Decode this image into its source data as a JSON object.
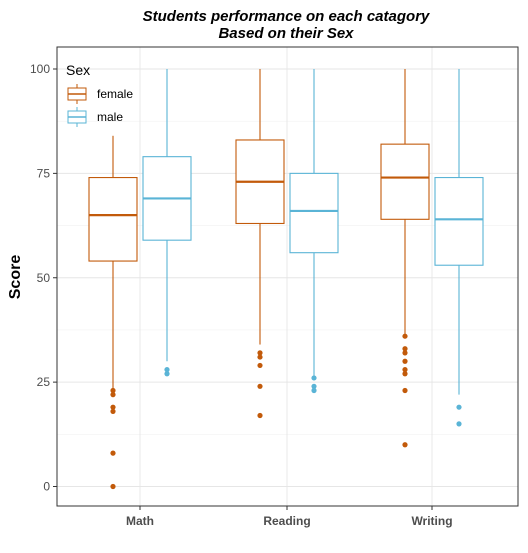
{
  "chart_data": {
    "type": "boxplot",
    "title": "Students performance on each catagory",
    "subtitle": "Based on their Sex",
    "xlabel": "",
    "ylabel": "Score",
    "ylim": [
      0,
      100
    ],
    "yticks": [
      0,
      25,
      50,
      75,
      100
    ],
    "categories": [
      "Math",
      "Reading",
      "Writing"
    ],
    "legend": {
      "title": "Sex",
      "position": "top-left"
    },
    "grid": true,
    "series": [
      {
        "name": "female",
        "color": "#c25a0a",
        "boxes": [
          {
            "whisker_low": 23,
            "q1": 54,
            "median": 65,
            "q3": 74,
            "whisker_high": 84,
            "outliers": [
              0,
              8,
              18,
              19,
              22,
              23
            ]
          },
          {
            "whisker_low": 34,
            "q1": 63,
            "median": 73,
            "q3": 83,
            "whisker_high": 100,
            "outliers": [
              17,
              24,
              29,
              31,
              32
            ]
          },
          {
            "whisker_low": 36,
            "q1": 64,
            "median": 74,
            "q3": 82,
            "whisker_high": 100,
            "outliers": [
              10,
              23,
              27,
              28,
              30,
              32,
              33,
              36
            ]
          }
        ]
      },
      {
        "name": "male",
        "color": "#5ab4d6",
        "boxes": [
          {
            "whisker_low": 30,
            "q1": 59,
            "median": 69,
            "q3": 79,
            "whisker_high": 100,
            "outliers": [
              27,
              28
            ]
          },
          {
            "whisker_low": 26,
            "q1": 56,
            "median": 66,
            "q3": 75,
            "whisker_high": 100,
            "outliers": [
              23,
              24,
              26
            ]
          },
          {
            "whisker_low": 22,
            "q1": 53,
            "median": 64,
            "q3": 74,
            "whisker_high": 100,
            "outliers": [
              15,
              19
            ]
          }
        ]
      }
    ]
  }
}
